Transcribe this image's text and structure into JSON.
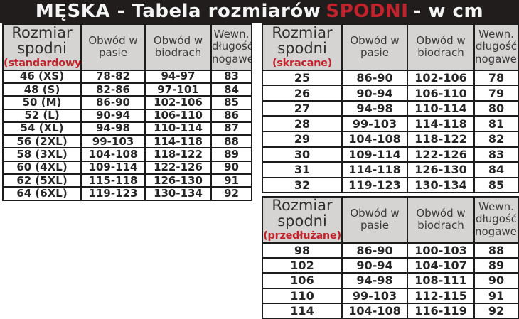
{
  "title": {
    "part1": "MĘSKA - Tabela rozmiarów",
    "highlight": "SPODNI",
    "part2": "- w cm"
  },
  "colors": {
    "title_bg": "#211d1d",
    "title_text": "#f4f4f4",
    "accent_red": "#c0232c",
    "header_gray": "#d6d4d2",
    "border_black": "#1c1c1c",
    "cell_text": "#262626"
  },
  "chart_data": [
    {
      "type": "table",
      "header": {
        "size_title": "Rozmiar spodni",
        "size_variant": "(standardowy)",
        "waist": "Obwód w pasie",
        "hips": "Obwód w biodrach",
        "inseam": "Wewn. długość nogawek"
      },
      "rows": [
        [
          "46 (XS)",
          "78-82",
          "94-97",
          "83"
        ],
        [
          "48 (S)",
          "82-86",
          "97-101",
          "84"
        ],
        [
          "50 (M)",
          "86-90",
          "102-106",
          "85"
        ],
        [
          "52 (L)",
          "90-94",
          "106-110",
          "86"
        ],
        [
          "54 (XL)",
          "94-98",
          "110-114",
          "87"
        ],
        [
          "56 (2XL)",
          "99-103",
          "114-118",
          "88"
        ],
        [
          "58 (3XL)",
          "104-108",
          "118-122",
          "89"
        ],
        [
          "60 (4XL)",
          "109-114",
          "122-126",
          "90"
        ],
        [
          "62 (5XL)",
          "115-118",
          "126-130",
          "91"
        ],
        [
          "64 (6XL)",
          "119-123",
          "130-134",
          "92"
        ]
      ]
    },
    {
      "type": "table",
      "header": {
        "size_title": "Rozmiar spodni",
        "size_variant": "(skracane)",
        "waist": "Obwód w pasie",
        "hips": "Obwód w biodrach",
        "inseam": "Wewn. długość nogawek"
      },
      "rows": [
        [
          "25",
          "86-90",
          "102-106",
          "78"
        ],
        [
          "26",
          "90-94",
          "106-110",
          "79"
        ],
        [
          "27",
          "94-98",
          "110-114",
          "80"
        ],
        [
          "28",
          "99-103",
          "114-118",
          "81"
        ],
        [
          "29",
          "104-108",
          "118-122",
          "82"
        ],
        [
          "30",
          "109-114",
          "122-126",
          "83"
        ],
        [
          "31",
          "114-118",
          "126-130",
          "84"
        ],
        [
          "32",
          "119-123",
          "130-134",
          "85"
        ]
      ]
    },
    {
      "type": "table",
      "header": {
        "size_title": "Rozmiar spodni",
        "size_variant": "(przedłużane)",
        "waist": "Obwód w pasie",
        "hips": "Obwód w biodrach",
        "inseam": "Wewn. długość nogawek"
      },
      "rows": [
        [
          "98",
          "86-90",
          "100-103",
          "88"
        ],
        [
          "102",
          "90-94",
          "104-107",
          "89"
        ],
        [
          "106",
          "94-98",
          "108-111",
          "90"
        ],
        [
          "110",
          "99-103",
          "112-115",
          "91"
        ],
        [
          "114",
          "104-108",
          "116-119",
          "92"
        ]
      ]
    }
  ]
}
